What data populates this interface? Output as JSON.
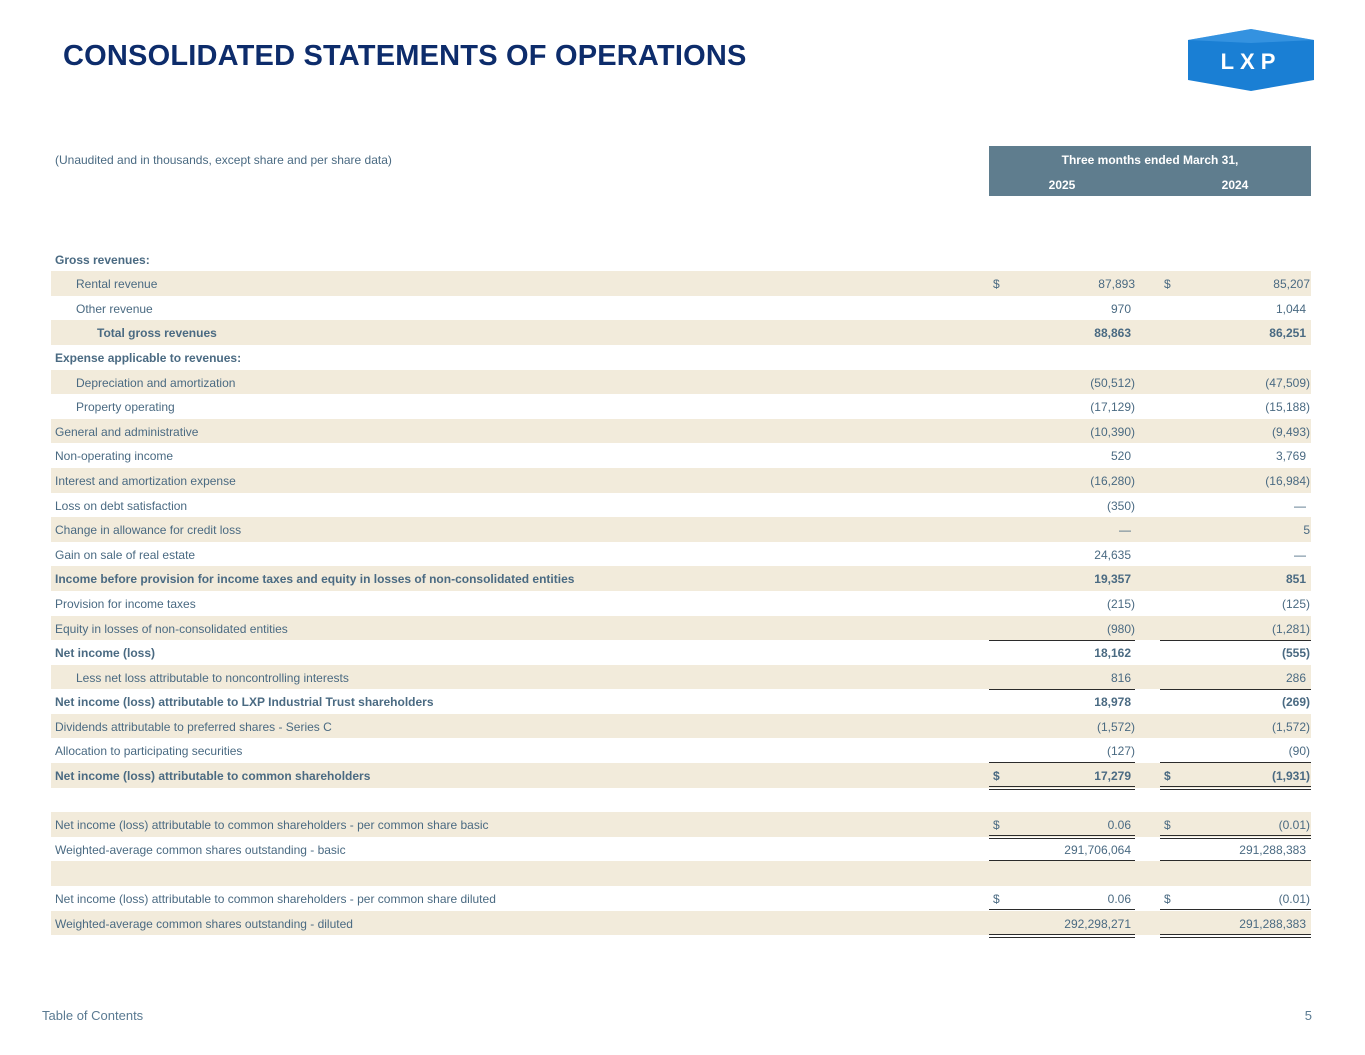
{
  "page": {
    "title": "CONSOLIDATED STATEMENTS OF OPERATIONS",
    "logo_text": "LXP",
    "subtitle": "(Unaudited and in thousands, except share and per share data)",
    "period_header": "Three months ended March 31,",
    "years": [
      "2025",
      "2024"
    ],
    "footer_link": "Table of Contents",
    "page_number": "5"
  },
  "colors": {
    "title": "#0d2c6b",
    "header_bg": "#5f7d8e",
    "row_shade": "#f2ebdb",
    "text": "#4a6a82",
    "logo_blue": "#1a7fd4"
  },
  "rows": [
    {
      "label": "",
      "v1": "",
      "v2": "",
      "shaded": false,
      "bold": false,
      "indent": 0
    },
    {
      "label": "Gross revenues:",
      "v1": "",
      "v2": "",
      "shaded": false,
      "bold": true,
      "indent": 0
    },
    {
      "label": "Rental revenue",
      "c1": "$",
      "v1": "87,893",
      "c2": "$",
      "v2": "85,207",
      "shaded": true,
      "bold": false,
      "indent": 1
    },
    {
      "label": "Other revenue",
      "v1": "970",
      "v2": "1,044",
      "shaded": false,
      "bold": false,
      "indent": 1,
      "in1": true,
      "in2": true,
      "under": "single"
    },
    {
      "label": "Total gross revenues",
      "v1": "88,863",
      "v2": "86,251",
      "shaded": true,
      "bold": true,
      "indent": 2,
      "in1": true,
      "in2": true
    },
    {
      "label": "Expense applicable to revenues:",
      "v1": "",
      "v2": "",
      "shaded": false,
      "bold": true,
      "indent": 0
    },
    {
      "label": "Depreciation and amortization",
      "v1": "(50,512)",
      "v2": "(47,509)",
      "shaded": true,
      "bold": false,
      "indent": 1
    },
    {
      "label": "Property operating",
      "v1": "(17,129)",
      "v2": "(15,188)",
      "shaded": false,
      "bold": false,
      "indent": 1
    },
    {
      "label": "General and administrative",
      "v1": "(10,390)",
      "v2": "(9,493)",
      "shaded": true,
      "bold": false,
      "indent": 0
    },
    {
      "label": "Non-operating income",
      "v1": "520",
      "v2": "3,769",
      "shaded": false,
      "bold": false,
      "indent": 0,
      "in1": true,
      "in2": true
    },
    {
      "label": "Interest and amortization expense",
      "v1": "(16,280)",
      "v2": "(16,984)",
      "shaded": true,
      "bold": false,
      "indent": 0
    },
    {
      "label": "Loss on debt satisfaction",
      "v1": "(350)",
      "v2": "—",
      "shaded": false,
      "bold": false,
      "indent": 0,
      "in2": true
    },
    {
      "label": "Change in allowance for credit loss",
      "v1": "—",
      "v2": "5",
      "shaded": true,
      "bold": false,
      "indent": 0,
      "in1": true
    },
    {
      "label": "Gain on sale of real estate",
      "v1": "24,635",
      "v2": "—",
      "shaded": false,
      "bold": false,
      "indent": 0,
      "in1": true,
      "in2": true,
      "under": "single"
    },
    {
      "label": "Income before provision for income taxes and equity in losses of non-consolidated entities",
      "v1": "19,357",
      "v2": "851",
      "shaded": true,
      "bold": true,
      "indent": 0,
      "in1": true,
      "in2": true
    },
    {
      "label": "Provision for income taxes",
      "v1": "(215)",
      "v2": "(125)",
      "shaded": false,
      "bold": false,
      "indent": 0
    },
    {
      "label": "Equity in losses of non-consolidated entities",
      "v1": "(980)",
      "v2": "(1,281)",
      "shaded": true,
      "bold": false,
      "indent": 0,
      "under": "single"
    },
    {
      "label": "Net income (loss)",
      "v1": "18,162",
      "v2": "(555)",
      "shaded": false,
      "bold": true,
      "indent": 0,
      "in1": true
    },
    {
      "label": "Less net loss attributable to noncontrolling interests",
      "v1": "816",
      "v2": "286",
      "shaded": true,
      "bold": false,
      "indent": 1,
      "in1": true,
      "in2": true,
      "under": "single"
    },
    {
      "label": "Net income (loss) attributable to LXP Industrial Trust shareholders",
      "v1": "18,978",
      "v2": "(269)",
      "shaded": false,
      "bold": true,
      "indent": 0,
      "in1": true
    },
    {
      "label": "Dividends attributable to preferred shares - Series C",
      "v1": "(1,572)",
      "v2": "(1,572)",
      "shaded": true,
      "bold": false,
      "indent": 0
    },
    {
      "label": "Allocation to participating securities",
      "v1": "(127)",
      "v2": "(90)",
      "shaded": false,
      "bold": false,
      "indent": 0,
      "under": "single"
    },
    {
      "label": "Net income (loss) attributable to common shareholders",
      "c1": "$",
      "v1": "17,279",
      "c2": "$",
      "v2": "(1,931)",
      "shaded": true,
      "bold": true,
      "indent": 0,
      "in1": true,
      "under": "double"
    },
    {
      "label": "",
      "v1": "",
      "v2": "",
      "shaded": false,
      "bold": false,
      "indent": 0
    },
    {
      "label": "Net income (loss) attributable to common shareholders - per common share basic",
      "c1": "$",
      "v1": "0.06",
      "c2": "$",
      "v2": "(0.01)",
      "shaded": true,
      "bold": false,
      "indent": 0,
      "in1": true,
      "under": "double"
    },
    {
      "label": "Weighted-average common shares outstanding - basic",
      "v1": "291,706,064",
      "v2": "291,288,383",
      "shaded": false,
      "bold": false,
      "indent": 0,
      "in1": true,
      "in2": true,
      "under": "double"
    },
    {
      "label": "",
      "v1": "",
      "v2": "",
      "shaded": true,
      "bold": false,
      "indent": 0
    },
    {
      "label": "Net income (loss) attributable to common shareholders - per common share diluted",
      "c1": "$",
      "v1": "0.06",
      "c2": "$",
      "v2": "(0.01)",
      "shaded": false,
      "bold": false,
      "indent": 0,
      "in1": true,
      "under": "double"
    },
    {
      "label": "Weighted-average common shares outstanding - diluted",
      "v1": "292,298,271",
      "v2": "291,288,383",
      "shaded": true,
      "bold": false,
      "indent": 0,
      "in1": true,
      "in2": true,
      "under": "double"
    }
  ]
}
